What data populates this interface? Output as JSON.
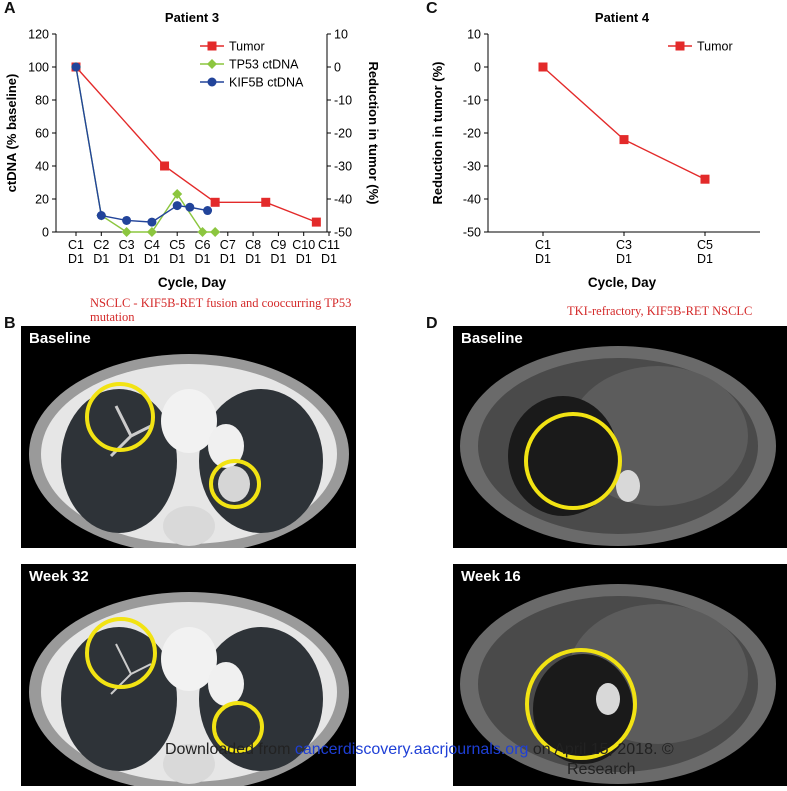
{
  "panel_letters": {
    "a": "A",
    "b": "B",
    "c": "C",
    "d": "D"
  },
  "chart_data": [
    {
      "type": "line",
      "title": "Patient 3",
      "xlabel": "Cycle, Day",
      "ylabel_left": "ctDNA (% baseline)",
      "ylabel_right": "Reduction in tumor (%)",
      "categories": [
        "C1 D1",
        "C2 D1",
        "C3 D1",
        "C4 D1",
        "C5 D1",
        "C6 D1",
        "C7 D1",
        "C8 D1",
        "C9 D1",
        "C10 D1",
        "C11 D1"
      ],
      "x_cycle": [
        "C1",
        "C2",
        "C3",
        "C4",
        "C5",
        "C6",
        "C7",
        "C8",
        "C9",
        "C10",
        "C11"
      ],
      "x_day": [
        "D1",
        "D1",
        "D1",
        "D1",
        "D1",
        "D1",
        "D1",
        "D1",
        "D1",
        "D1",
        "D1"
      ],
      "ylim_left": [
        0,
        120
      ],
      "yticks_left": [
        0,
        20,
        40,
        60,
        80,
        100,
        120
      ],
      "ylim_right": [
        -50,
        10
      ],
      "yticks_right": [
        -50,
        -40,
        -30,
        -20,
        -10,
        0,
        10
      ],
      "series": [
        {
          "name": "Tumor",
          "axis": "right",
          "color": "#e32a2a",
          "marker": "square",
          "x": [
            0,
            3.5,
            5.5,
            7.5,
            9.5
          ],
          "values": [
            0,
            -30,
            -41,
            -41,
            -47
          ]
        },
        {
          "name": "TP53 ctDNA",
          "axis": "left",
          "color": "#8cc63f",
          "marker": "diamond",
          "x": [
            0,
            1,
            2,
            3,
            4,
            5,
            5.5
          ],
          "values": [
            100,
            10,
            0,
            0,
            23,
            0,
            0
          ]
        },
        {
          "name": "KIF5B ctDNA",
          "axis": "left",
          "color": "#22449a",
          "marker": "circle",
          "x": [
            0,
            1,
            2,
            3,
            4,
            4.5,
            5.2
          ],
          "values": [
            100,
            10,
            7,
            6,
            16,
            15,
            13
          ]
        }
      ],
      "legend": "top-right"
    },
    {
      "type": "line",
      "title": "Patient 4",
      "xlabel": "Cycle, Day",
      "ylabel": "Reduction in tumor (%)",
      "categories": [
        "C1 D1",
        "C3 D1",
        "C5 D1"
      ],
      "x_cycle": [
        "C1",
        "C3",
        "C5"
      ],
      "x_day": [
        "D1",
        "D1",
        "D1"
      ],
      "ylim": [
        -50,
        10
      ],
      "yticks": [
        -50,
        -40,
        -30,
        -20,
        -10,
        0,
        10
      ],
      "series": [
        {
          "name": "Tumor",
          "color": "#e32a2a",
          "marker": "square",
          "values": [
            0,
            -22,
            -34
          ]
        }
      ],
      "legend": "top-right"
    }
  ],
  "notes": {
    "b": "NSCLC - KIF5B-RET fusion and cooccurring TP53 mutation",
    "d": "TKI-refractory, KIF5B-RET NSCLC"
  },
  "scans": {
    "b_top": "Baseline",
    "b_bottom": "Week 32",
    "d_top": "Baseline",
    "d_bottom": "Week 16"
  },
  "footer": {
    "prefix": "Downloaded from ",
    "link": "cancerdiscovery.aacrjournals.org",
    "suffix": " on April 15, 2018. ©",
    "line2": "Research"
  }
}
